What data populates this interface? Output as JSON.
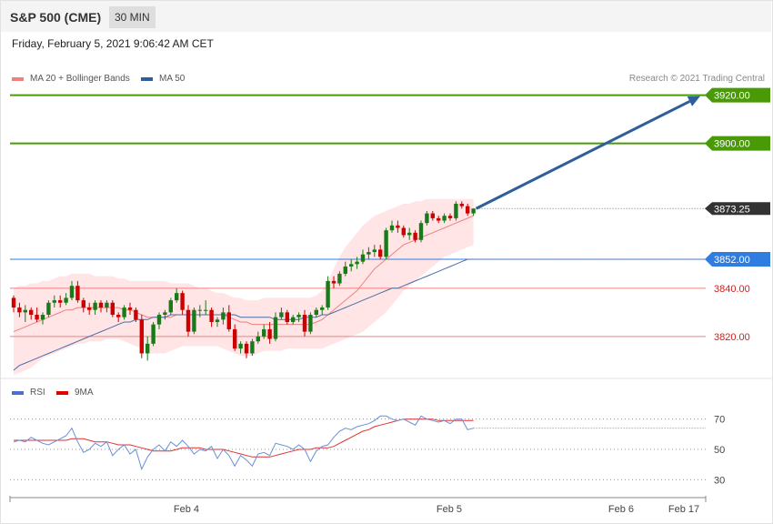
{
  "header": {
    "instrument": "S&P 500 (CME)",
    "timeframe": "30 MIN"
  },
  "timestamp": "Friday, February 5, 2021 9:06:42 AM CET",
  "legend": {
    "ma20": "MA 20 + Bollinger Bands",
    "ma50": "MA 50",
    "rsi": "RSI",
    "rsi_ma": "9MA"
  },
  "credit": "Research © 2021 Trading Central",
  "colors": {
    "resistance": "#4a9a08",
    "pivot": "#2f7de1",
    "support": "#f08080",
    "arrow": "#2e5e9c",
    "ma50": "#4a6fa5",
    "ma20": "#f08080",
    "band": "#ffe0e0",
    "bull": "#1a7a1a",
    "bear": "#cc0000",
    "rsi": "#6a8fd8",
    "rsi_ma": "#e03030",
    "last_price_bg": "#333333"
  },
  "chart_data": [
    {
      "type": "candlestick",
      "title": "",
      "ylim": [
        3803,
        3927
      ],
      "x_ticks": [
        "Feb 4",
        "Feb 5",
        "Feb 6",
        "Feb 17"
      ],
      "last_price": "3873.25",
      "levels": [
        {
          "label": "3920.00",
          "value": 3920,
          "kind": "resistance"
        },
        {
          "label": "3900.00",
          "value": 3900,
          "kind": "resistance"
        },
        {
          "label": "3852.00",
          "value": 3852,
          "kind": "pivot"
        },
        {
          "label": "3840.00",
          "value": 3840,
          "kind": "support"
        },
        {
          "label": "3820.00",
          "value": 3820,
          "kind": "support"
        }
      ],
      "projection": {
        "from": 3873,
        "to": 3920
      },
      "candles": [
        [
          3836,
          3837,
          3830,
          3832
        ],
        [
          3832,
          3834,
          3828,
          3830
        ],
        [
          3830,
          3833,
          3826,
          3831
        ],
        [
          3831,
          3832,
          3827,
          3829
        ],
        [
          3829,
          3832,
          3826,
          3827
        ],
        [
          3827,
          3830,
          3825,
          3829
        ],
        [
          3829,
          3835,
          3828,
          3834
        ],
        [
          3834,
          3837,
          3832,
          3835
        ],
        [
          3835,
          3837,
          3832,
          3834
        ],
        [
          3834,
          3838,
          3833,
          3836
        ],
        [
          3836,
          3843,
          3835,
          3841
        ],
        [
          3841,
          3843,
          3834,
          3835
        ],
        [
          3835,
          3836,
          3830,
          3832
        ],
        [
          3832,
          3834,
          3829,
          3831
        ],
        [
          3831,
          3835,
          3829,
          3834
        ],
        [
          3834,
          3835,
          3830,
          3832
        ],
        [
          3832,
          3835,
          3830,
          3834
        ],
        [
          3834,
          3835,
          3828,
          3829
        ],
        [
          3829,
          3830,
          3826,
          3828
        ],
        [
          3828,
          3833,
          3827,
          3832
        ],
        [
          3832,
          3834,
          3829,
          3831
        ],
        [
          3831,
          3832,
          3826,
          3827
        ],
        [
          3827,
          3829,
          3811,
          3813
        ],
        [
          3813,
          3820,
          3810,
          3817
        ],
        [
          3817,
          3826,
          3816,
          3825
        ],
        [
          3825,
          3830,
          3823,
          3829
        ],
        [
          3829,
          3831,
          3827,
          3830
        ],
        [
          3830,
          3836,
          3829,
          3835
        ],
        [
          3835,
          3840,
          3834,
          3838
        ],
        [
          3838,
          3839,
          3829,
          3831
        ],
        [
          3831,
          3833,
          3820,
          3822
        ],
        [
          3822,
          3832,
          3821,
          3831
        ],
        [
          3831,
          3833,
          3828,
          3831
        ],
        [
          3831,
          3835,
          3829,
          3831
        ],
        [
          3831,
          3832,
          3824,
          3826
        ],
        [
          3826,
          3828,
          3824,
          3827
        ],
        [
          3827,
          3832,
          3825,
          3830
        ],
        [
          3830,
          3833,
          3822,
          3823
        ],
        [
          3823,
          3825,
          3814,
          3815
        ],
        [
          3815,
          3818,
          3813,
          3817
        ],
        [
          3817,
          3818,
          3811,
          3813
        ],
        [
          3813,
          3819,
          3812,
          3818
        ],
        [
          3818,
          3822,
          3817,
          3820
        ],
        [
          3820,
          3825,
          3819,
          3823
        ],
        [
          3823,
          3826,
          3817,
          3819
        ],
        [
          3819,
          3830,
          3818,
          3828
        ],
        [
          3828,
          3832,
          3827,
          3830
        ],
        [
          3830,
          3831,
          3825,
          3826
        ],
        [
          3826,
          3829,
          3825,
          3828
        ],
        [
          3828,
          3830,
          3826,
          3829
        ],
        [
          3829,
          3831,
          3820,
          3822
        ],
        [
          3822,
          3830,
          3821,
          3829
        ],
        [
          3829,
          3832,
          3828,
          3831
        ],
        [
          3831,
          3833,
          3829,
          3832
        ],
        [
          3832,
          3845,
          3831,
          3843
        ],
        [
          3843,
          3845,
          3840,
          3842
        ],
        [
          3842,
          3847,
          3841,
          3846
        ],
        [
          3846,
          3851,
          3845,
          3849
        ],
        [
          3849,
          3852,
          3847,
          3850
        ],
        [
          3850,
          3853,
          3848,
          3851
        ],
        [
          3851,
          3856,
          3850,
          3854
        ],
        [
          3854,
          3857,
          3852,
          3855
        ],
        [
          3855,
          3858,
          3853,
          3856
        ],
        [
          3856,
          3858,
          3852,
          3853
        ],
        [
          3853,
          3865,
          3852,
          3864
        ],
        [
          3864,
          3868,
          3863,
          3866
        ],
        [
          3866,
          3868,
          3863,
          3865
        ],
        [
          3865,
          3866,
          3861,
          3862
        ],
        [
          3862,
          3865,
          3860,
          3863
        ],
        [
          3863,
          3864,
          3859,
          3860
        ],
        [
          3860,
          3868,
          3859,
          3867
        ],
        [
          3867,
          3872,
          3866,
          3871
        ],
        [
          3871,
          3872,
          3868,
          3869
        ],
        [
          3869,
          3870,
          3867,
          3868
        ],
        [
          3868,
          3871,
          3867,
          3870
        ],
        [
          3870,
          3871,
          3868,
          3869
        ],
        [
          3869,
          3876,
          3868,
          3875
        ],
        [
          3875,
          3876,
          3873,
          3874
        ],
        [
          3874,
          3875,
          3870,
          3871
        ],
        [
          3871,
          3873,
          3870,
          3873
        ]
      ],
      "ma20": [
        3822,
        3823,
        3824,
        3825,
        3826,
        3827,
        3828,
        3829,
        3830,
        3831,
        3831,
        3832,
        3832,
        3832,
        3832,
        3832,
        3832,
        3832,
        3832,
        3831,
        3831,
        3830,
        3829,
        3828,
        3828,
        3828,
        3828,
        3828,
        3829,
        3829,
        3829,
        3829,
        3829,
        3829,
        3829,
        3829,
        3829,
        3828,
        3827,
        3826,
        3826,
        3825,
        3825,
        3825,
        3825,
        3825,
        3825,
        3825,
        3825,
        3825,
        3825,
        3825,
        3826,
        3827,
        3829,
        3831,
        3833,
        3835,
        3837,
        3839,
        3842,
        3845,
        3848,
        3850,
        3852,
        3854,
        3856,
        3858,
        3859,
        3860,
        3861,
        3862,
        3863,
        3864,
        3865,
        3866,
        3867,
        3868,
        3869,
        3870
      ],
      "band_upper": [
        3840,
        3841,
        3841,
        3842,
        3842,
        3843,
        3843,
        3844,
        3845,
        3845,
        3846,
        3846,
        3846,
        3846,
        3845,
        3845,
        3845,
        3845,
        3844,
        3844,
        3843,
        3843,
        3843,
        3843,
        3843,
        3843,
        3843,
        3842,
        3842,
        3842,
        3842,
        3841,
        3840,
        3840,
        3839,
        3838,
        3838,
        3837,
        3836,
        3836,
        3835,
        3835,
        3835,
        3836,
        3836,
        3836,
        3836,
        3836,
        3836,
        3836,
        3836,
        3836,
        3837,
        3839,
        3843,
        3848,
        3853,
        3857,
        3860,
        3863,
        3866,
        3868,
        3870,
        3871,
        3872,
        3873,
        3874,
        3875,
        3875,
        3876,
        3876,
        3877,
        3877,
        3877,
        3877,
        3877,
        3877,
        3877,
        3877,
        3877
      ],
      "band_lower": [
        3804,
        3805,
        3806,
        3807,
        3809,
        3811,
        3812,
        3813,
        3814,
        3815,
        3816,
        3817,
        3817,
        3818,
        3818,
        3818,
        3819,
        3819,
        3819,
        3818,
        3817,
        3816,
        3815,
        3813,
        3813,
        3813,
        3813,
        3814,
        3815,
        3816,
        3816,
        3816,
        3816,
        3816,
        3816,
        3816,
        3815,
        3814,
        3813,
        3812,
        3812,
        3812,
        3813,
        3814,
        3814,
        3814,
        3814,
        3815,
        3815,
        3815,
        3815,
        3815,
        3815,
        3815,
        3816,
        3817,
        3818,
        3819,
        3820,
        3821,
        3822,
        3824,
        3826,
        3828,
        3830,
        3833,
        3836,
        3839,
        3841,
        3843,
        3845,
        3847,
        3849,
        3851,
        3853,
        3854,
        3855,
        3856,
        3857,
        3858
      ],
      "ma50": [
        3806,
        3808,
        3809,
        3810,
        3811,
        3812,
        3813,
        3814,
        3815,
        3816,
        3817,
        3818,
        3819,
        3820,
        3821,
        3822,
        3823,
        3824,
        3825,
        3826,
        3826,
        3827,
        3827,
        3827,
        3828,
        3828,
        3828,
        3829,
        3829,
        3829,
        3829,
        3829,
        3829,
        3829,
        3829,
        3829,
        3829,
        3829,
        3829,
        3828,
        3828,
        3828,
        3828,
        3828,
        3828,
        3827,
        3827,
        3827,
        3827,
        3827,
        3828,
        3828,
        3828,
        3829,
        3829,
        3830,
        3831,
        3832,
        3833,
        3834,
        3835,
        3836,
        3837,
        3838,
        3839,
        3840,
        3840,
        3841,
        3842,
        3843,
        3844,
        3845,
        3846,
        3847,
        3848,
        3849,
        3850,
        3851,
        3852,
        3852
      ]
    },
    {
      "type": "line",
      "title": "",
      "ylim": [
        20,
        80
      ],
      "y_ticks": [
        "70",
        "50",
        "30"
      ],
      "series": [
        {
          "name": "RSI",
          "values": [
            55,
            56,
            55,
            58,
            56,
            54,
            53,
            55,
            57,
            59,
            64,
            55,
            48,
            50,
            54,
            52,
            55,
            46,
            50,
            53,
            47,
            50,
            37,
            45,
            50,
            53,
            49,
            55,
            52,
            56,
            52,
            47,
            50,
            49,
            52,
            44,
            50,
            46,
            39,
            46,
            43,
            39,
            47,
            48,
            46,
            54,
            53,
            52,
            50,
            53,
            50,
            42,
            49,
            52,
            53,
            58,
            62,
            64,
            63,
            65,
            66,
            67,
            69,
            72,
            72,
            70,
            69,
            70,
            68,
            66,
            72,
            70,
            69,
            68,
            69,
            67,
            70,
            70,
            63,
            64
          ]
        },
        {
          "name": "9MA",
          "values": [
            56,
            56,
            56,
            56,
            56,
            56,
            56,
            56,
            56,
            56,
            57,
            57,
            57,
            56,
            55,
            55,
            55,
            54,
            53,
            53,
            53,
            52,
            51,
            50,
            49,
            49,
            49,
            49,
            50,
            51,
            51,
            51,
            51,
            50,
            50,
            50,
            50,
            49,
            48,
            47,
            46,
            45,
            45,
            45,
            45,
            46,
            47,
            48,
            49,
            50,
            50,
            50,
            51,
            51,
            51,
            52,
            54,
            56,
            58,
            60,
            62,
            63,
            65,
            66,
            67,
            68,
            69,
            70,
            70,
            70,
            70,
            70,
            70,
            69,
            69,
            69,
            69,
            69,
            69,
            69
          ]
        }
      ]
    }
  ]
}
